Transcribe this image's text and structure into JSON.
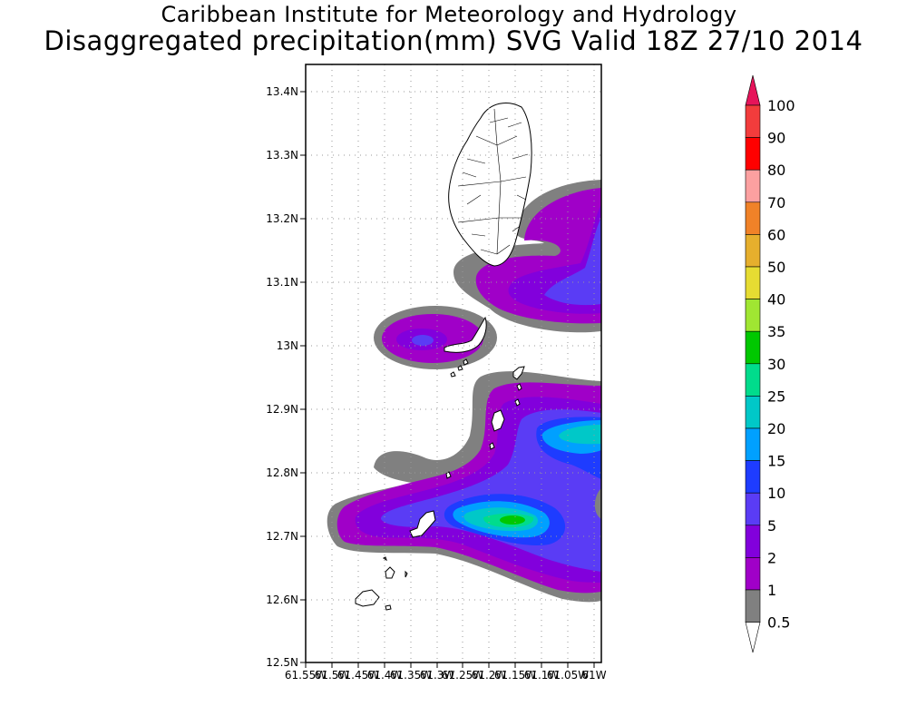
{
  "title": "Caribbean Institute for Meteorology and Hydrology",
  "subtitle": "Disaggregated precipitation(mm) SVG Valid 18Z 27/10 2014",
  "map": {
    "lat_labels": [
      "13.4N",
      "13.3N",
      "13.2N",
      "13.1N",
      "13N",
      "12.9N",
      "12.8N",
      "12.7N",
      "12.6N",
      "12.5N"
    ],
    "lon_labels": [
      "61.55W",
      "61.5W",
      "61.45W",
      "61.4W",
      "61.35W",
      "61.3W",
      "61.25W",
      "61.2W",
      "61.15W",
      "61.1W",
      "61.05W",
      "61W"
    ],
    "lat_range": [
      12.5,
      13.44
    ],
    "lon_range": [
      -61.55,
      -60.985
    ]
  },
  "colorbar": {
    "labels": [
      "100",
      "90",
      "80",
      "70",
      "60",
      "50",
      "40",
      "35",
      "30",
      "25",
      "20",
      "15",
      "10",
      "5",
      "2",
      "1",
      "0.5"
    ],
    "colors": {
      "above_100": "#e6145a",
      "90-100": "#f23c3c",
      "80-90": "#ff0000",
      "70-80": "#fca0a0",
      "60-70": "#f08228",
      "50-60": "#e6af2d",
      "40-50": "#e6dc32",
      "35-40": "#a0e632",
      "30-35": "#00c800",
      "25-30": "#00dc8c",
      "20-25": "#00c8c8",
      "15-20": "#00a0ff",
      "10-15": "#1e3cff",
      "5-10": "#5a3cf5",
      "2-5": "#8200dc",
      "1-2": "#a000c8",
      "0.5-1": "#808080",
      "below_0.5": "#ffffff"
    }
  }
}
